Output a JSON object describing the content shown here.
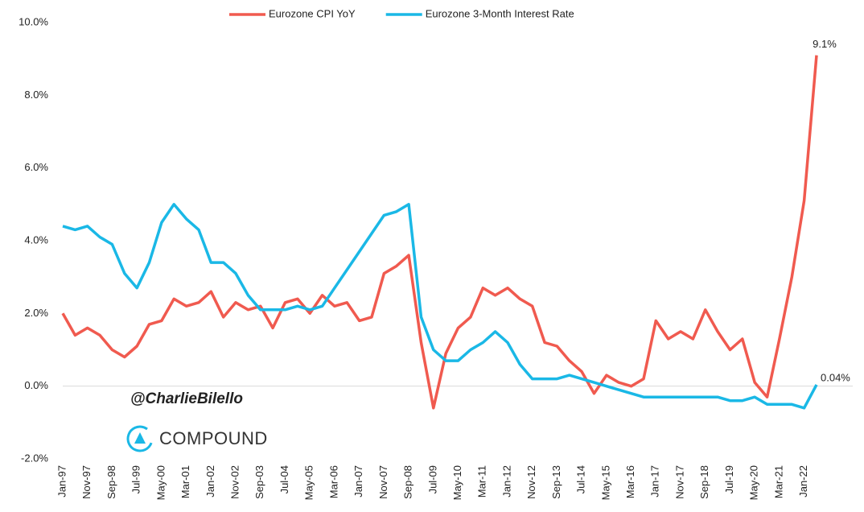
{
  "chart_data": {
    "type": "line",
    "categories": [
      "Jan-97",
      null,
      "Nov-97",
      null,
      "Sep-98",
      null,
      "Jul-99",
      null,
      "May-00",
      null,
      "Mar-01",
      null,
      "Jan-02",
      null,
      "Nov-02",
      null,
      "Sep-03",
      null,
      "Jul-04",
      null,
      "May-05",
      null,
      "Mar-06",
      null,
      "Jan-07",
      null,
      "Nov-07",
      null,
      "Sep-08",
      null,
      "Jul-09",
      null,
      "May-10",
      null,
      "Mar-11",
      null,
      "Jan-12",
      null,
      "Nov-12",
      null,
      "Sep-13",
      null,
      "Jul-14",
      null,
      "May-15",
      null,
      "Mar-16",
      null,
      "Jan-17",
      null,
      "Nov-17",
      null,
      "Sep-18",
      null,
      "Jul-19",
      null,
      "May-20",
      null,
      "Mar-21",
      null,
      "Jan-22",
      null
    ],
    "series": [
      {
        "name": "Eurozone CPI YoY",
        "color": "#f05a4f",
        "values": [
          2.0,
          1.4,
          1.6,
          1.4,
          1.0,
          0.8,
          1.1,
          1.7,
          1.8,
          2.4,
          2.2,
          2.3,
          2.6,
          1.9,
          2.3,
          2.1,
          2.2,
          1.6,
          2.3,
          2.4,
          2.0,
          2.5,
          2.2,
          2.3,
          1.8,
          1.9,
          3.1,
          3.3,
          3.6,
          1.2,
          -0.6,
          0.9,
          1.6,
          1.9,
          2.7,
          2.5,
          2.7,
          2.4,
          2.2,
          1.2,
          1.1,
          0.7,
          0.4,
          -0.2,
          0.3,
          0.1,
          0.0,
          0.2,
          1.8,
          1.3,
          1.5,
          1.3,
          2.1,
          1.5,
          1.0,
          1.3,
          0.1,
          -0.3,
          1.3,
          3.0,
          5.1,
          9.1
        ],
        "value_labels": [
          null,
          null,
          null,
          null,
          null,
          null,
          null,
          null,
          null,
          null,
          null,
          null,
          null,
          null,
          null,
          null,
          null,
          null,
          null,
          null,
          null,
          null,
          null,
          null,
          null,
          null,
          null,
          null,
          null,
          null,
          null,
          null,
          null,
          null,
          null,
          null,
          null,
          null,
          null,
          null,
          null,
          null,
          null,
          null,
          null,
          null,
          null,
          null,
          null,
          null,
          null,
          null,
          null,
          null,
          null,
          null,
          null,
          null,
          null,
          null,
          null,
          "9.1%"
        ]
      },
      {
        "name": "Eurozone 3-Month Interest Rate",
        "color": "#1ab8e6",
        "values": [
          4.4,
          4.3,
          4.4,
          4.1,
          3.9,
          3.1,
          2.7,
          3.4,
          4.5,
          5.0,
          4.6,
          4.3,
          3.4,
          3.4,
          3.1,
          2.5,
          2.1,
          2.1,
          2.1,
          2.2,
          2.1,
          2.2,
          2.7,
          3.2,
          3.7,
          4.2,
          4.7,
          4.8,
          5.0,
          1.9,
          1.0,
          0.7,
          0.7,
          1.0,
          1.2,
          1.5,
          1.2,
          0.6,
          0.2,
          0.2,
          0.2,
          0.3,
          0.2,
          0.1,
          0.0,
          -0.1,
          -0.2,
          -0.3,
          -0.3,
          -0.3,
          -0.3,
          -0.3,
          -0.3,
          -0.3,
          -0.4,
          -0.4,
          -0.3,
          -0.5,
          -0.5,
          -0.5,
          -0.6,
          0.04
        ],
        "value_labels": [
          null,
          null,
          null,
          null,
          null,
          null,
          null,
          null,
          null,
          null,
          null,
          null,
          null,
          null,
          null,
          null,
          null,
          null,
          null,
          null,
          null,
          null,
          null,
          null,
          null,
          null,
          null,
          null,
          null,
          null,
          null,
          null,
          null,
          null,
          null,
          null,
          null,
          null,
          null,
          null,
          null,
          null,
          null,
          null,
          null,
          null,
          null,
          null,
          null,
          null,
          null,
          null,
          null,
          null,
          null,
          null,
          null,
          null,
          null,
          null,
          null,
          "0.04%"
        ]
      }
    ],
    "ylim": [
      -2,
      10
    ],
    "yticks": [
      {
        "value": -2,
        "label": "-2.0%"
      },
      {
        "value": 0,
        "label": "0.0%"
      },
      {
        "value": 2,
        "label": "2.0%"
      },
      {
        "value": 4,
        "label": "4.0%"
      },
      {
        "value": 6,
        "label": "6.0%"
      },
      {
        "value": 8,
        "label": "8.0%"
      },
      {
        "value": 10,
        "label": "10.0%"
      }
    ],
    "grid": false,
    "legend": "top",
    "watermark": {
      "handle": "@CharlieBilello",
      "brand": "COMPOUND"
    }
  }
}
